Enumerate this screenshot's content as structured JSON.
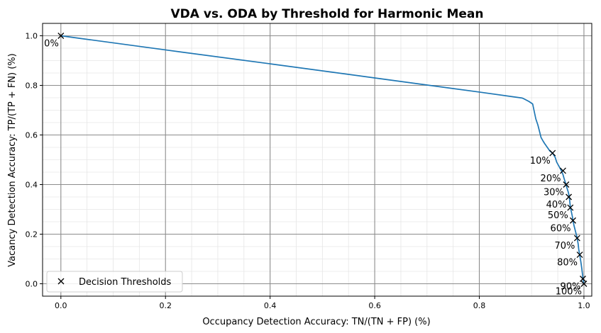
{
  "chart_data": {
    "type": "line",
    "title": "VDA vs. ODA by Threshold for Harmonic Mean",
    "xlabel": "Occupancy Detection Accuracy: TN/(TN + FP) (%)",
    "ylabel": "Vacancy Detection Accuracy: TP/(TP + FN) (%)",
    "xlim": [
      -0.035,
      1.015
    ],
    "ylim": [
      -0.05,
      1.05
    ],
    "xticks": [
      0.0,
      0.2,
      0.4,
      0.6,
      0.8,
      1.0
    ],
    "xtick_labels": [
      "0.0",
      "0.2",
      "0.4",
      "0.6",
      "0.8",
      "1.0"
    ],
    "yticks": [
      0.0,
      0.2,
      0.4,
      0.6,
      0.8,
      1.0
    ],
    "ytick_labels": [
      "0.0",
      "0.2",
      "0.4",
      "0.6",
      "0.8",
      "1.0"
    ],
    "grid": {
      "major": true,
      "minor": true
    },
    "legend": {
      "position": "lower-left",
      "entries": [
        "Decision Thresholds"
      ]
    },
    "colors": {
      "line": "#1f77b4",
      "marker": "#000000",
      "major_grid": "#8c8c8c",
      "minor_grid": "#e6e6e6"
    },
    "series": [
      {
        "points": [
          [
            0.0,
            1.0
          ],
          [
            0.2,
            0.943
          ],
          [
            0.4,
            0.887
          ],
          [
            0.6,
            0.83
          ],
          [
            0.8,
            0.773
          ],
          [
            0.882,
            0.749
          ],
          [
            0.886,
            0.745
          ],
          [
            0.895,
            0.735
          ],
          [
            0.902,
            0.725
          ],
          [
            0.905,
            0.695
          ],
          [
            0.908,
            0.665
          ],
          [
            0.912,
            0.64
          ],
          [
            0.915,
            0.615
          ],
          [
            0.918,
            0.59
          ],
          [
            0.922,
            0.575
          ],
          [
            0.925,
            0.565
          ],
          [
            0.93,
            0.55
          ],
          [
            0.935,
            0.535
          ],
          [
            0.94,
            0.527
          ],
          [
            0.945,
            0.51
          ],
          [
            0.948,
            0.49
          ],
          [
            0.952,
            0.475
          ],
          [
            0.957,
            0.455
          ],
          [
            0.96,
            0.44
          ],
          [
            0.962,
            0.425
          ],
          [
            0.965,
            0.405
          ],
          [
            0.967,
            0.39
          ],
          [
            0.97,
            0.37
          ],
          [
            0.972,
            0.352
          ],
          [
            0.973,
            0.33
          ],
          [
            0.974,
            0.31
          ],
          [
            0.976,
            0.29
          ],
          [
            0.978,
            0.27
          ],
          [
            0.979,
            0.255
          ],
          [
            0.981,
            0.235
          ],
          [
            0.984,
            0.21
          ],
          [
            0.987,
            0.185
          ],
          [
            0.989,
            0.16
          ],
          [
            0.99,
            0.14
          ],
          [
            0.992,
            0.115
          ],
          [
            0.994,
            0.09
          ],
          [
            0.996,
            0.06
          ],
          [
            0.998,
            0.025
          ],
          [
            0.999,
            0.01
          ],
          [
            1.0,
            0.0
          ]
        ]
      }
    ],
    "thresholds": [
      {
        "label": "0%",
        "x": 0.0,
        "y": 1.0
      },
      {
        "label": "10%",
        "x": 0.94,
        "y": 0.527
      },
      {
        "label": "20%",
        "x": 0.96,
        "y": 0.456
      },
      {
        "label": "30%",
        "x": 0.966,
        "y": 0.4
      },
      {
        "label": "40%",
        "x": 0.971,
        "y": 0.35
      },
      {
        "label": "50%",
        "x": 0.974,
        "y": 0.307
      },
      {
        "label": "60%",
        "x": 0.979,
        "y": 0.255
      },
      {
        "label": "70%",
        "x": 0.987,
        "y": 0.184
      },
      {
        "label": "80%",
        "x": 0.992,
        "y": 0.117
      },
      {
        "label": "90%",
        "x": 0.998,
        "y": 0.02
      },
      {
        "label": "100%",
        "x": 1.0,
        "y": 0.0
      }
    ]
  }
}
